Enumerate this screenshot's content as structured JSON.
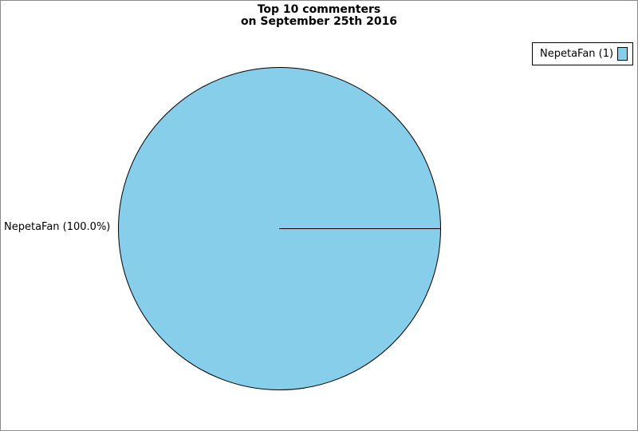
{
  "figure": {
    "title_line1": "Top 10 commenters",
    "title_line2": "on September 25th 2016"
  },
  "legend": {
    "entry_label": "NepetaFan (1)",
    "swatch_color": "#87CEEB"
  },
  "pie": {
    "slice_label": "NepetaFan (100.0%)",
    "fill_color": "#87CEEB",
    "outline_color": "#000000"
  },
  "chart_data": {
    "type": "pie",
    "title": "Top 10 commenters on September 25th 2016",
    "labels": [
      "NepetaFan"
    ],
    "values": [
      1
    ],
    "percentages": [
      100.0
    ],
    "colors": [
      "#87CEEB"
    ],
    "slice_labels": [
      "NepetaFan (100.0%)"
    ],
    "legend_entries": [
      "NepetaFan (1)"
    ],
    "legend_position": "top-right",
    "start_angle_deg": 0,
    "total": 1
  }
}
